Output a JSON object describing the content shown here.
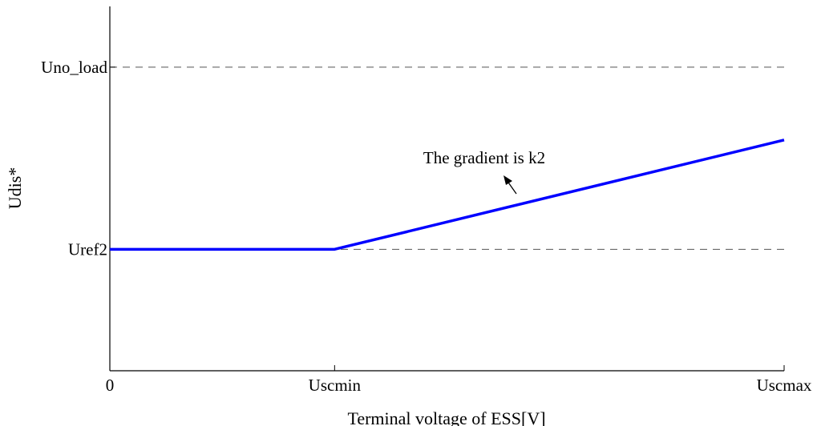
{
  "chart_data": {
    "type": "line",
    "title": "",
    "xlabel": "Terminal voltage of ESS[V]",
    "ylabel": "Udis*",
    "x_ticks": [
      "0",
      "Uscmin",
      "Uscmax"
    ],
    "y_ticks": [
      "Uref2",
      "Uno_load"
    ],
    "xlim": [
      0,
      3
    ],
    "ylim": [
      -1,
      5
    ],
    "grid": false,
    "legend": "none",
    "reference_lines": [
      {
        "label": "Uno_load",
        "y": 4,
        "style": "dashed"
      },
      {
        "label": "Uref2",
        "y": 1,
        "style": "dashed"
      }
    ],
    "series": [
      {
        "color": "#0000ff",
        "x": [
          0,
          1,
          3
        ],
        "y": [
          1,
          1,
          2.8
        ]
      }
    ],
    "annotations": [
      {
        "text": "The gradient is k2",
        "arrow": true
      }
    ]
  }
}
